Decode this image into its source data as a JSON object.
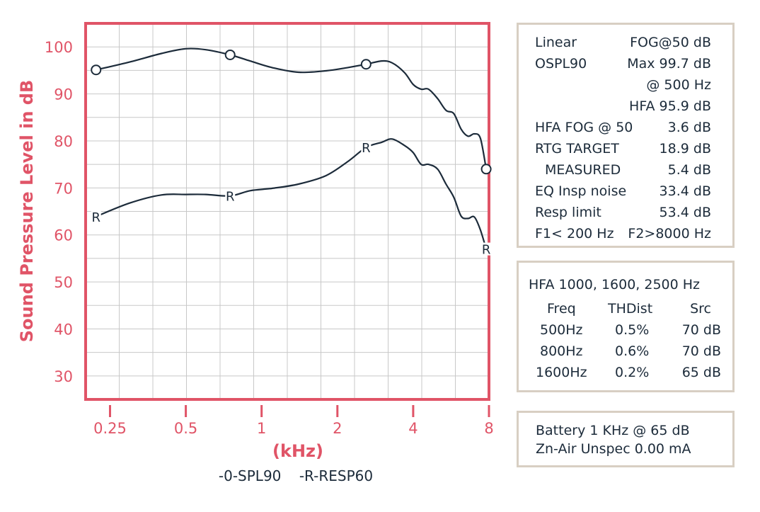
{
  "colors": {
    "frame": "#e05467",
    "grid": "#c8c8c8",
    "curve": "#1c2b3a",
    "panel_border": "#d8cfc3"
  },
  "chart_data": {
    "type": "line",
    "ylabel": "Sound Pressure Level in dB",
    "xlabel": "(kHz)",
    "x_scale": "log",
    "xlim": [
      0.2,
      8
    ],
    "ylim": [
      25,
      105
    ],
    "x_ticks": [
      0.25,
      0.5,
      1,
      2,
      4,
      8
    ],
    "x_tick_labels": [
      "0.25",
      "0.5",
      "1",
      "2",
      "4",
      "8"
    ],
    "y_ticks": [
      30,
      40,
      50,
      60,
      70,
      80,
      90,
      100
    ],
    "y_tick_labels": [
      "30",
      "40",
      "50",
      "60",
      "70",
      "80",
      "90",
      "100"
    ],
    "grid": true,
    "legend": "-0-SPL90    -R-RESP60",
    "series": [
      {
        "name": "SPL90",
        "marker": "O",
        "x": [
          0.22,
          0.3,
          0.4,
          0.5,
          0.6,
          0.75,
          0.9,
          1.1,
          1.4,
          1.8,
          2.2,
          2.6,
          3.0,
          3.3,
          3.7,
          4.0,
          4.3,
          4.6,
          5.0,
          5.4,
          5.8,
          6.2,
          6.6,
          7.0,
          7.4,
          7.8
        ],
        "y": [
          95.1,
          96.8,
          98.6,
          99.6,
          99.4,
          98.3,
          97.0,
          95.6,
          94.6,
          94.9,
          95.6,
          96.3,
          97.0,
          96.6,
          94.5,
          92.0,
          91.0,
          91.0,
          89.0,
          86.5,
          85.8,
          82.5,
          81.0,
          81.5,
          80.5,
          74.0
        ],
        "marker_x": [
          0.22,
          0.75,
          2.6,
          7.8
        ]
      },
      {
        "name": "RESP60",
        "marker": "R",
        "x": [
          0.22,
          0.3,
          0.4,
          0.5,
          0.6,
          0.75,
          0.9,
          1.1,
          1.4,
          1.8,
          2.2,
          2.6,
          3.0,
          3.3,
          3.7,
          4.0,
          4.3,
          4.6,
          5.0,
          5.4,
          5.8,
          6.2,
          6.6,
          7.0,
          7.4,
          7.8
        ],
        "y": [
          63.9,
          66.8,
          68.5,
          68.6,
          68.6,
          68.3,
          69.4,
          69.9,
          70.8,
          72.6,
          75.6,
          78.6,
          79.7,
          80.4,
          79.0,
          77.5,
          75.0,
          75.0,
          74.0,
          70.8,
          68.0,
          64.0,
          63.5,
          63.8,
          61.0,
          57.0
        ],
        "marker_x": [
          0.22,
          0.75,
          2.6,
          7.8
        ]
      }
    ]
  },
  "panel1": {
    "rows": [
      {
        "left": "Linear",
        "right": "FOG@50 dB"
      },
      {
        "left": "OSPL90",
        "right": "Max 99.7 dB"
      },
      {
        "left": "",
        "right": "@ 500 Hz"
      },
      {
        "left": "",
        "right": "HFA 95.9 dB"
      },
      {
        "left": "HFA FOG @ 50",
        "right": "3.6 dB"
      },
      {
        "left": "RTG TARGET",
        "right": "18.9 dB"
      },
      {
        "left": "MEASURED",
        "right": "5.4 dB"
      },
      {
        "left": "EQ Insp noise",
        "right": "33.4 dB"
      },
      {
        "left": "Resp limit",
        "right": "53.4 dB"
      },
      {
        "left": "F1< 200 Hz",
        "right": "F2>8000 Hz"
      }
    ]
  },
  "panel2": {
    "title": "HFA 1000, 1600, 2500 Hz",
    "headers": [
      "Freq",
      "THDist",
      "Src"
    ],
    "rows": [
      [
        "500Hz",
        "0.5%",
        "70 dB"
      ],
      [
        "800Hz",
        "0.6%",
        "70 dB"
      ],
      [
        "1600Hz",
        "0.2%",
        "65 dB"
      ]
    ]
  },
  "panel3": {
    "line1": "Battery 1 KHz @ 65 dB",
    "line2": "Zn-Air Unspec 0.00 mA"
  }
}
